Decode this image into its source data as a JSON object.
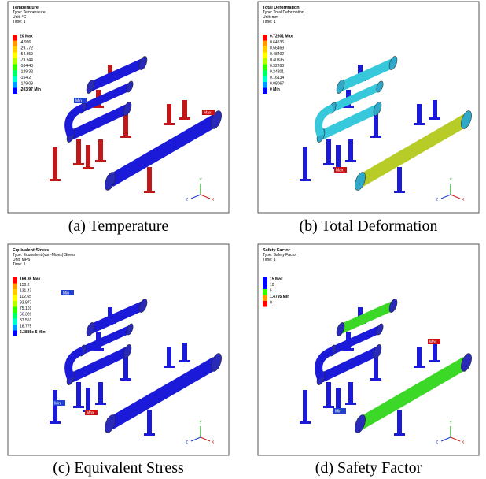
{
  "triad": {
    "y": "Y",
    "z": "Z",
    "x": "X"
  },
  "panels": [
    {
      "header": {
        "title": "Temperature",
        "type": "Type: Temperature",
        "unit": "Unit: °C",
        "time": "Time: 1"
      },
      "legend": [
        {
          "label": "20 Max",
          "color": "#ff0000"
        },
        {
          "label": "-4.996",
          "color": "#ff9900"
        },
        {
          "label": "-29.772",
          "color": "#ffcc00"
        },
        {
          "label": "-54.659",
          "color": "#ffff00"
        },
        {
          "label": "-79.544",
          "color": "#b3ff00"
        },
        {
          "label": "-104.43",
          "color": "#33ff00"
        },
        {
          "label": "-129.32",
          "color": "#00ff66"
        },
        {
          "label": "-154.2",
          "color": "#00ffcc"
        },
        {
          "label": "-179.09",
          "color": "#0099ff"
        },
        {
          "label": "-203.97 Min",
          "color": "#0000ff"
        }
      ],
      "tags": [
        {
          "text": "Min",
          "color": "#2040d0"
        },
        {
          "text": "Max",
          "color": "#d01010"
        }
      ],
      "caption": "(a)  Temperature"
    },
    {
      "header": {
        "title": "Total Deformation",
        "type": "Type: Total Deformation",
        "unit": "Unit: mm",
        "time": "Time: 1"
      },
      "legend": [
        {
          "label": "0.72601 Max",
          "color": "#ff0000"
        },
        {
          "label": "0.64536",
          "color": "#ff9900"
        },
        {
          "label": "0.56469",
          "color": "#ffcc00"
        },
        {
          "label": "0.48402",
          "color": "#ffff00"
        },
        {
          "label": "0.40335",
          "color": "#b3ff00"
        },
        {
          "label": "0.32268",
          "color": "#33ff00"
        },
        {
          "label": "0.24201",
          "color": "#00ff66"
        },
        {
          "label": "0.16134",
          "color": "#00ffcc"
        },
        {
          "label": "0.08067",
          "color": "#0099ff"
        },
        {
          "label": "0 Min",
          "color": "#0000ff"
        }
      ],
      "tags": [
        {
          "text": "Max",
          "color": "#d01010"
        }
      ],
      "caption": "(b)  Total  Deformation"
    },
    {
      "header": {
        "title": "Equivalent Stress",
        "type": "Type: Equivalent (von-Mises) Stress",
        "unit": "Unit: MPa",
        "time": "Time: 1"
      },
      "legend": [
        {
          "label": "168.98 Max",
          "color": "#ff0000"
        },
        {
          "label": "150.2",
          "color": "#ff9900"
        },
        {
          "label": "131.43",
          "color": "#ffcc00"
        },
        {
          "label": "112.65",
          "color": "#ffff00"
        },
        {
          "label": "93.877",
          "color": "#b3ff00"
        },
        {
          "label": "75.101",
          "color": "#33ff00"
        },
        {
          "label": "56.326",
          "color": "#00ff66"
        },
        {
          "label": "37.551",
          "color": "#00ffcc"
        },
        {
          "label": "18.775",
          "color": "#0099ff"
        },
        {
          "label": "6.3885e-5 Min",
          "color": "#0000ff"
        }
      ],
      "tags": [
        {
          "text": "Min",
          "color": "#2040d0"
        },
        {
          "text": "Min",
          "color": "#2040d0"
        },
        {
          "text": "Max",
          "color": "#d01010"
        }
      ],
      "caption": "(c)  Equivalent  Stress"
    },
    {
      "header": {
        "title": "Safety Factor",
        "type": "Type: Safety Factor",
        "time": "Time: 1"
      },
      "legend": [
        {
          "label": "15 Max",
          "color": "#0000ff"
        },
        {
          "label": "10",
          "color": "#0000ff"
        },
        {
          "label": "5",
          "color": "#33ff00"
        },
        {
          "label": "1.4795 Min",
          "color": "#ff9900"
        },
        {
          "label": "0",
          "color": "#ff0000"
        }
      ],
      "tags": [
        {
          "text": "Max",
          "color": "#d01010"
        },
        {
          "text": "Min",
          "color": "#2040d0"
        }
      ],
      "caption": "(d)  Safety  Factor"
    }
  ]
}
